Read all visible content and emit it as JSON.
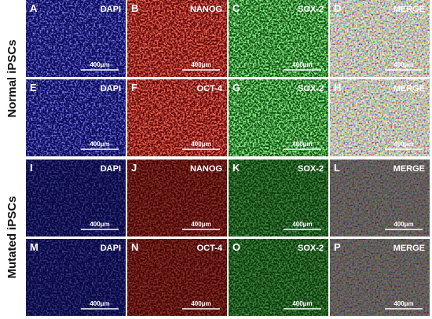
{
  "groups": [
    "Normal iPSCs",
    "Mutated iPSCs"
  ],
  "rows": [
    [
      {
        "letter": "A",
        "label": "DAPI",
        "scale": "400μm"
      },
      {
        "letter": "B",
        "label": "NANOG",
        "scale": "400μm"
      },
      {
        "letter": "C",
        "label": "SOX-2",
        "scale": "400μm"
      },
      {
        "letter": "D",
        "label": "MERGE",
        "scale": "400μm"
      }
    ],
    [
      {
        "letter": "E",
        "label": "DAPI",
        "scale": "400μm"
      },
      {
        "letter": "F",
        "label": "OCT-4",
        "scale": "400μm"
      },
      {
        "letter": "G",
        "label": "SOX-2",
        "scale": "400μm"
      },
      {
        "letter": "H",
        "label": "MERGE",
        "scale": "400μm"
      }
    ],
    [
      {
        "letter": "I",
        "label": "DAPI",
        "scale": "400μm"
      },
      {
        "letter": "J",
        "label": "NANOG",
        "scale": "400μm"
      },
      {
        "letter": "K",
        "label": "SOX-2",
        "scale": "400μm"
      },
      {
        "letter": "L",
        "label": "MERGE",
        "scale": "400μm"
      }
    ],
    [
      {
        "letter": "M",
        "label": "DAPI",
        "scale": "400μm"
      },
      {
        "letter": "N",
        "label": "OCT-4",
        "scale": "400μm"
      },
      {
        "letter": "O",
        "label": "SOX-2",
        "scale": "400μm"
      },
      {
        "letter": "P",
        "label": "MERGE",
        "scale": "400μm"
      }
    ]
  ]
}
